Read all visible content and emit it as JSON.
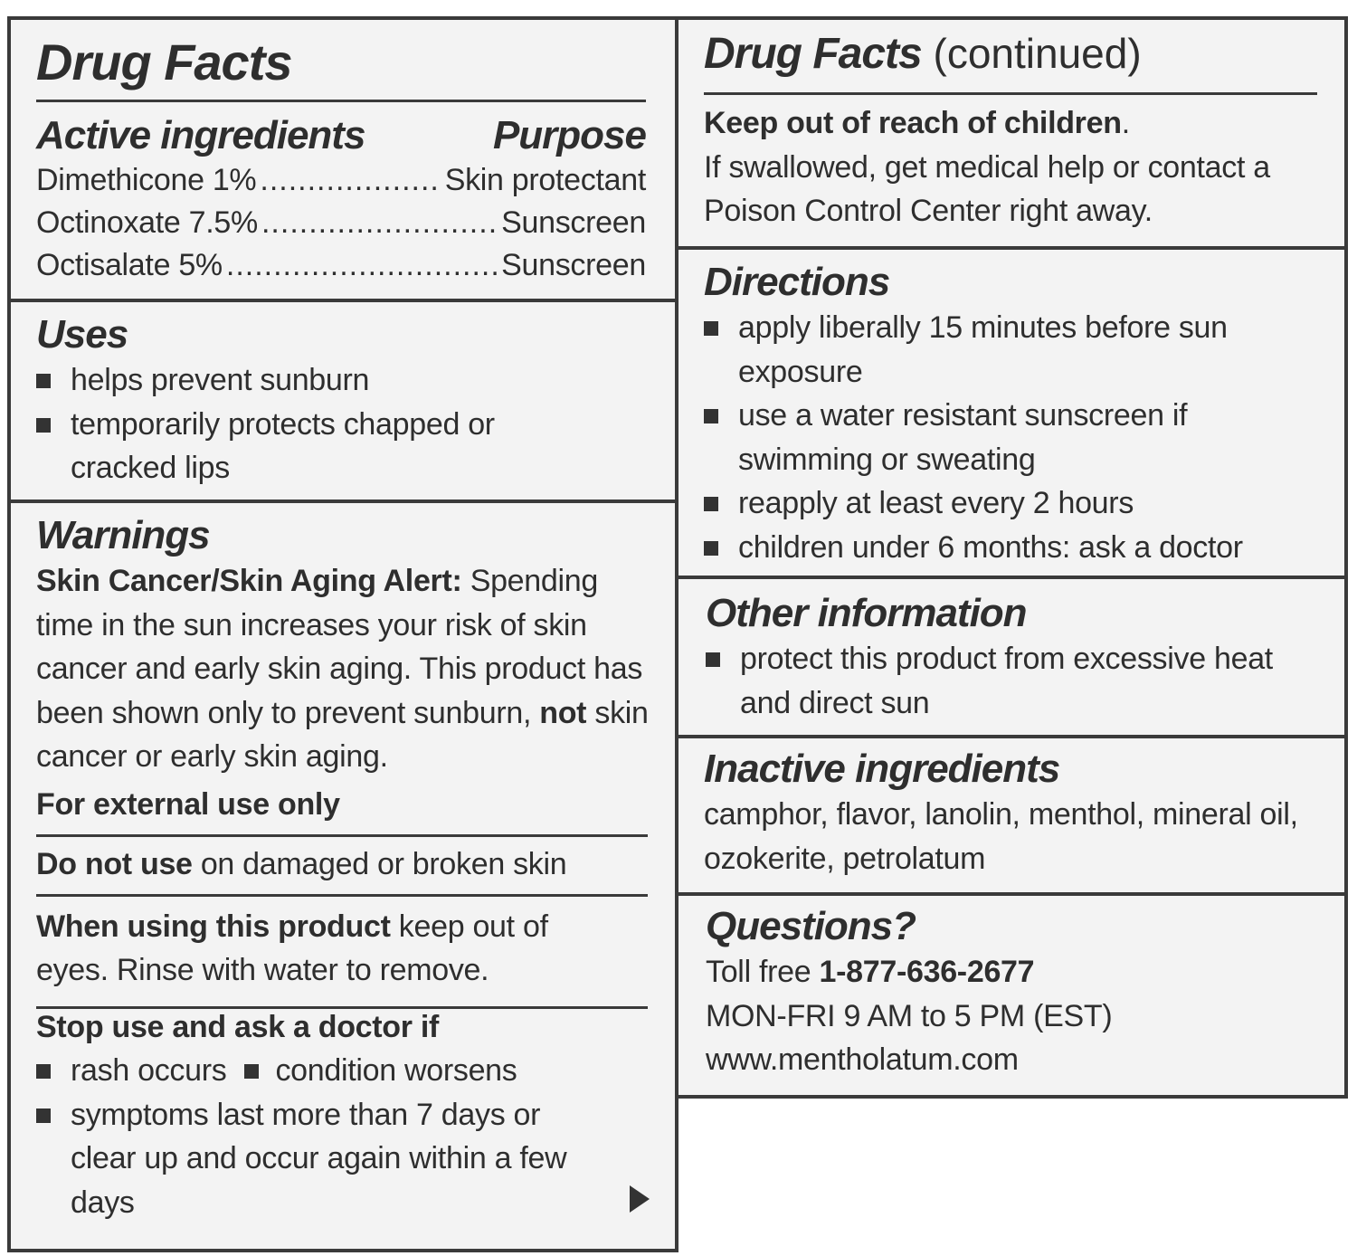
{
  "left": {
    "title": "Drug Facts",
    "active": {
      "heading": "Active ingredients",
      "purpose_heading": "Purpose",
      "rows": [
        {
          "ingredient": "Dimethicone 1%",
          "purpose": "Skin protectant"
        },
        {
          "ingredient": "Octinoxate 7.5%",
          "purpose": "Sunscreen"
        },
        {
          "ingredient": "Octisalate 5%",
          "purpose": "Sunscreen"
        }
      ]
    },
    "uses": {
      "heading": "Uses",
      "items": [
        "helps prevent sunburn",
        "temporarily protects chapped or cracked lips"
      ]
    },
    "warnings": {
      "heading": "Warnings",
      "alert_bold": "Skin Cancer/Skin Aging Alert:",
      "alert_text": " Spending time in the sun increases your risk of skin cancer and early skin aging. This product has been shown only to prevent sunburn, ",
      "alert_bold2": "not",
      "alert_text2": " skin cancer or early skin aging.",
      "external": "For external use only",
      "do_not_use_bold": "Do not use",
      "do_not_use_text": " on damaged or broken skin",
      "when_using_bold": "When using this product",
      "when_using_text": " keep out of eyes. Rinse with water to remove.",
      "stop_heading": "Stop use and ask a doctor if",
      "stop_items": [
        "rash occurs",
        "condition worsens",
        "symptoms last more than 7 days or clear up and occur again within a few days"
      ]
    }
  },
  "right": {
    "title": "Drug Facts",
    "title_suffix": " (continued)",
    "keep_out_bold": "Keep out of reach of children",
    "keep_out_period": ".",
    "keep_out_text": "If swallowed, get medical help or contact a Poison Control Center right away.",
    "directions": {
      "heading": "Directions",
      "items": [
        "apply liberally 15 minutes before sun exposure",
        "use a water resistant sunscreen if swimming or sweating",
        "reapply at least every 2 hours",
        "children under 6 months: ask a doctor"
      ]
    },
    "other": {
      "heading": "Other information",
      "items": [
        "protect this product from excessive heat and direct sun"
      ]
    },
    "inactive": {
      "heading": "Inactive ingredients",
      "text": "camphor, flavor, lanolin, menthol, mineral oil, ozokerite, petrolatum"
    },
    "questions": {
      "heading": "Questions?",
      "toll_label": "Toll free ",
      "phone": "1-877-636-2677",
      "hours": "MON-FRI 9 AM to 5 PM (EST)",
      "website": "www.mentholatum.com"
    }
  }
}
